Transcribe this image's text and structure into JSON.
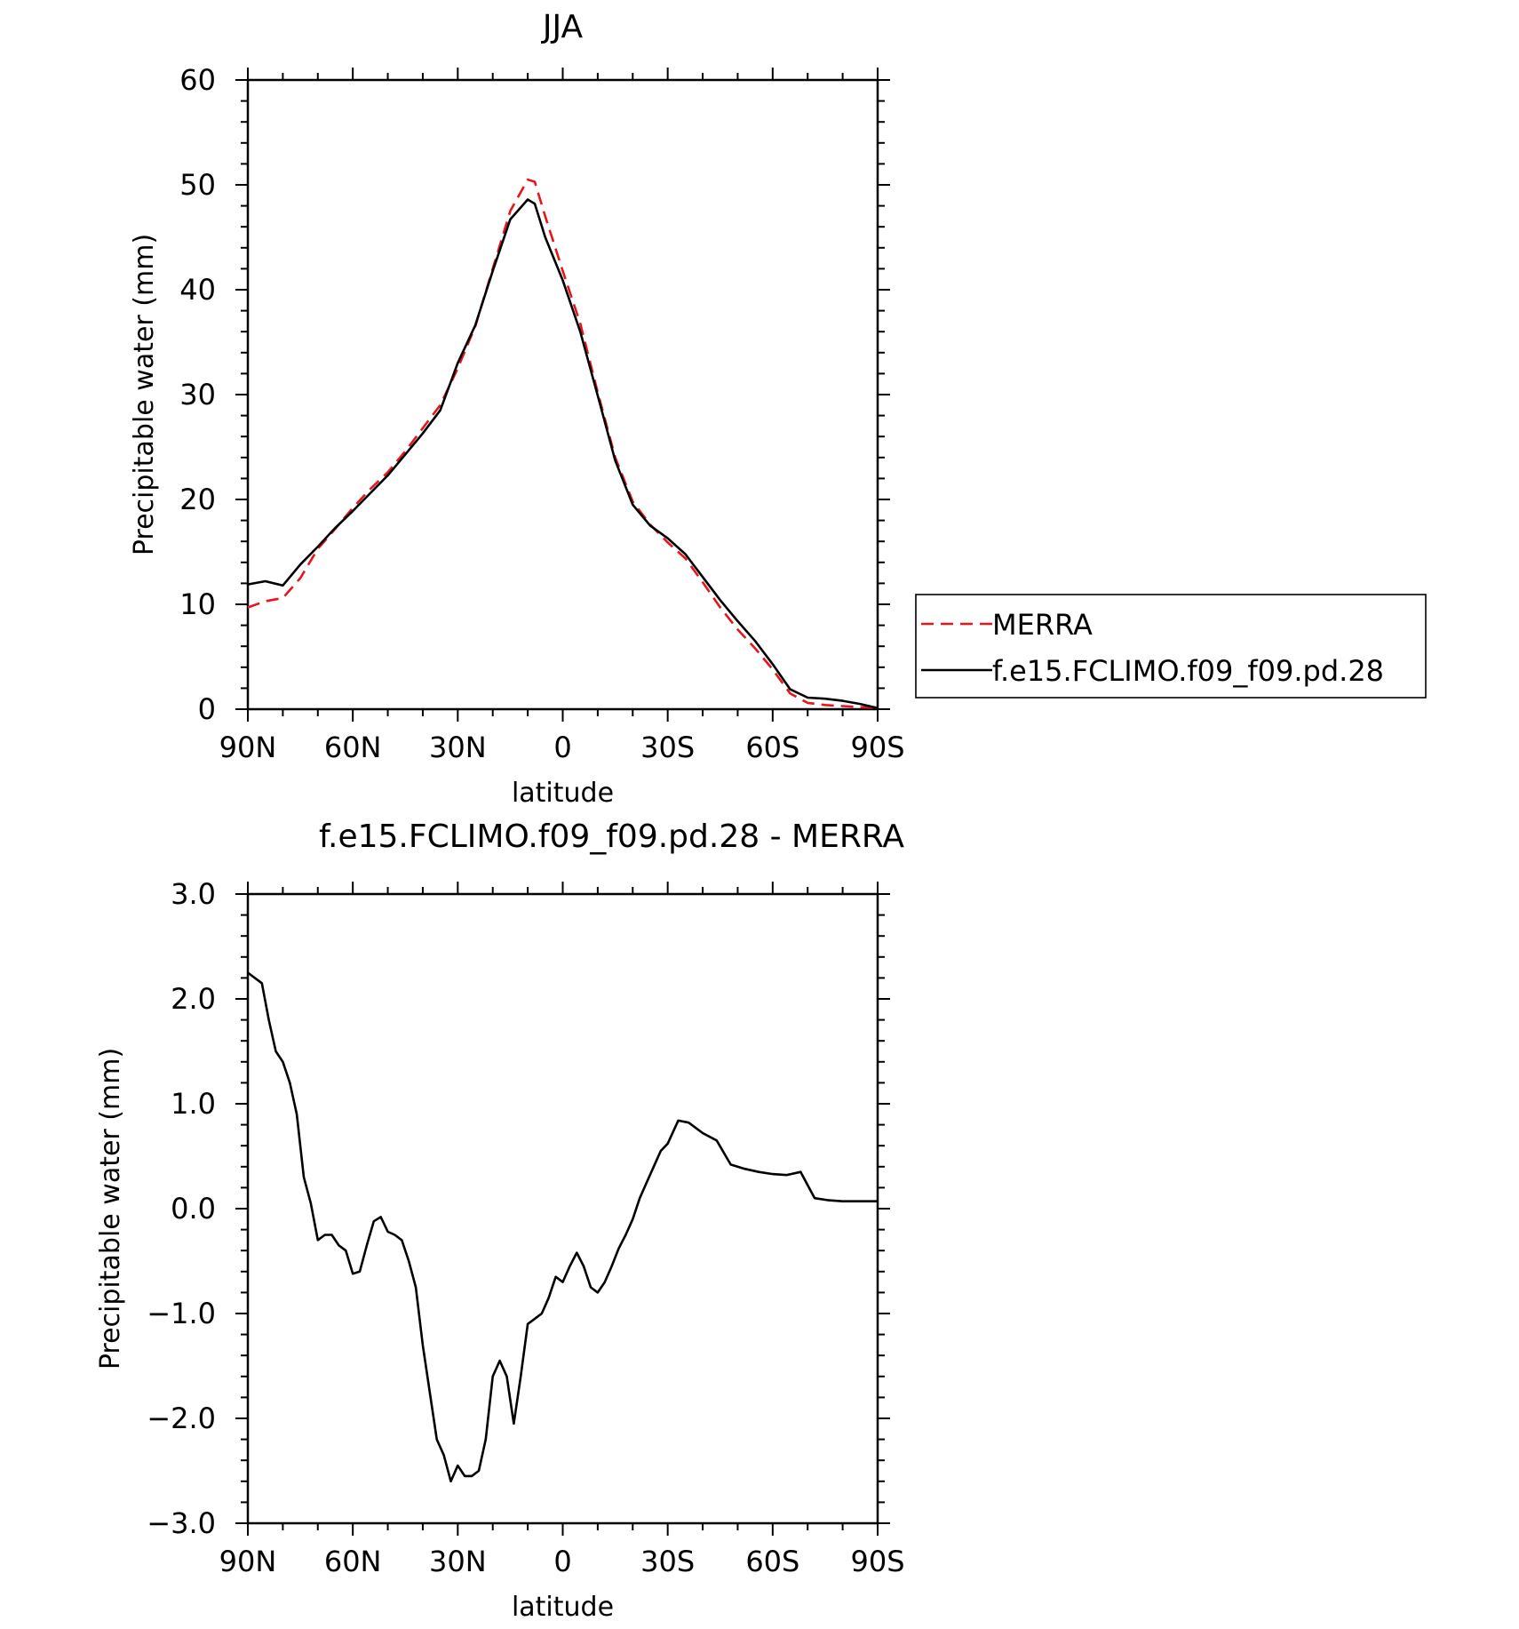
{
  "chart_data": [
    {
      "type": "line",
      "title": "JJA",
      "xlabel": "latitude",
      "ylabel": "Precipitable water (mm)",
      "xlim": [
        90,
        -90
      ],
      "ylim": [
        0,
        60
      ],
      "xticks": [
        90,
        60,
        30,
        0,
        -30,
        -60,
        -90
      ],
      "xtick_labels": [
        "90N",
        "60N",
        "30N",
        "0",
        "30S",
        "60S",
        "90S"
      ],
      "yticks": [
        0,
        10,
        20,
        30,
        40,
        50,
        60
      ],
      "ytick_labels": [
        "0",
        "10",
        "20",
        "30",
        "40",
        "50",
        "60"
      ],
      "grid": false,
      "legend_position": "right",
      "series": [
        {
          "name": "MERRA",
          "color": "#e8161b",
          "dash": "dashed",
          "x": [
            90,
            85,
            80,
            75,
            70,
            65,
            60,
            55,
            50,
            45,
            40,
            35,
            30,
            25,
            20,
            15,
            10,
            8,
            5,
            0,
            -5,
            -10,
            -15,
            -20,
            -25,
            -30,
            -35,
            -40,
            -45,
            -50,
            -55,
            -60,
            -65,
            -70,
            -75,
            -80,
            -85,
            -90
          ],
          "y": [
            9.7,
            10.3,
            10.6,
            12.5,
            15.3,
            17.2,
            19.2,
            21.0,
            22.6,
            24.6,
            26.8,
            29.0,
            32.5,
            36.5,
            42.0,
            47.5,
            50.5,
            50.3,
            47.0,
            41.8,
            36.8,
            30.2,
            24.0,
            19.8,
            17.6,
            15.9,
            14.4,
            12.1,
            9.7,
            7.6,
            5.8,
            3.8,
            1.5,
            0.6,
            0.4,
            0.3,
            0.2,
            0.1
          ]
        },
        {
          "name": "f.e15.FCLIMO.f09_f09.pd.28",
          "color": "#000000",
          "dash": "solid",
          "x": [
            90,
            85,
            80,
            75,
            70,
            65,
            60,
            55,
            50,
            45,
            40,
            35,
            30,
            25,
            20,
            15,
            10,
            8,
            5,
            0,
            -5,
            -10,
            -15,
            -20,
            -25,
            -30,
            -35,
            -40,
            -45,
            -50,
            -55,
            -60,
            -65,
            -70,
            -75,
            -80,
            -85,
            -90
          ],
          "y": [
            11.9,
            12.2,
            11.8,
            13.8,
            15.5,
            17.3,
            18.9,
            20.6,
            22.3,
            24.3,
            26.3,
            28.5,
            33.0,
            36.6,
            41.8,
            46.7,
            48.6,
            48.2,
            45.0,
            40.9,
            36.0,
            29.9,
            23.7,
            19.5,
            17.5,
            16.3,
            14.8,
            12.6,
            10.4,
            8.4,
            6.5,
            4.3,
            1.9,
            1.1,
            1.0,
            0.8,
            0.5,
            0.1
          ]
        }
      ]
    },
    {
      "type": "line",
      "title": "f.e15.FCLIMO.f09_f09.pd.28 - MERRA",
      "xlabel": "latitude",
      "ylabel": "Precipitable water (mm)",
      "xlim": [
        90,
        -90
      ],
      "ylim": [
        -3.0,
        3.0
      ],
      "xticks": [
        90,
        60,
        30,
        0,
        -30,
        -60,
        -90
      ],
      "xtick_labels": [
        "90N",
        "60N",
        "30N",
        "0",
        "30S",
        "60S",
        "90S"
      ],
      "yticks": [
        -3.0,
        -2.0,
        -1.0,
        0.0,
        1.0,
        2.0,
        3.0
      ],
      "ytick_labels": [
        "-3.0",
        "-2.0",
        "-1.0",
        "0.0",
        "1.0",
        "2.0",
        "3.0"
      ],
      "grid": false,
      "series": [
        {
          "color": "#000000",
          "dash": "solid",
          "x": [
            90,
            88,
            86,
            84,
            82,
            80,
            78,
            76,
            74,
            72,
            70,
            68,
            66,
            64,
            62,
            60,
            58,
            56,
            54,
            52,
            50,
            48,
            46,
            44,
            42,
            40,
            38,
            36,
            34,
            32,
            30,
            28,
            26,
            24,
            22,
            20,
            18,
            16,
            14,
            12,
            10,
            8,
            6,
            4,
            2,
            0,
            -2,
            -4,
            -6,
            -8,
            -10,
            -12,
            -14,
            -16,
            -18,
            -20,
            -22,
            -24,
            -26,
            -28,
            -30,
            -33,
            -36,
            -40,
            -44,
            -48,
            -52,
            -56,
            -60,
            -64,
            -68,
            -72,
            -76,
            -80,
            -84,
            -88,
            -90
          ],
          "y": [
            2.25,
            2.2,
            2.15,
            1.8,
            1.5,
            1.4,
            1.2,
            0.9,
            0.3,
            0.05,
            -0.3,
            -0.25,
            -0.25,
            -0.35,
            -0.4,
            -0.62,
            -0.6,
            -0.35,
            -0.12,
            -0.08,
            -0.22,
            -0.25,
            -0.3,
            -0.5,
            -0.75,
            -1.3,
            -1.75,
            -2.2,
            -2.35,
            -2.6,
            -2.45,
            -2.55,
            -2.55,
            -2.5,
            -2.2,
            -1.6,
            -1.45,
            -1.6,
            -2.05,
            -1.6,
            -1.1,
            -1.05,
            -1.0,
            -0.85,
            -0.65,
            -0.7,
            -0.55,
            -0.42,
            -0.55,
            -0.75,
            -0.8,
            -0.7,
            -0.55,
            -0.38,
            -0.25,
            -0.1,
            0.1,
            0.25,
            0.4,
            0.55,
            0.62,
            0.84,
            0.82,
            0.72,
            0.65,
            0.42,
            0.38,
            0.35,
            0.33,
            0.32,
            0.35,
            0.1,
            0.08,
            0.07,
            0.07,
            0.07,
            0.07
          ]
        }
      ]
    }
  ]
}
